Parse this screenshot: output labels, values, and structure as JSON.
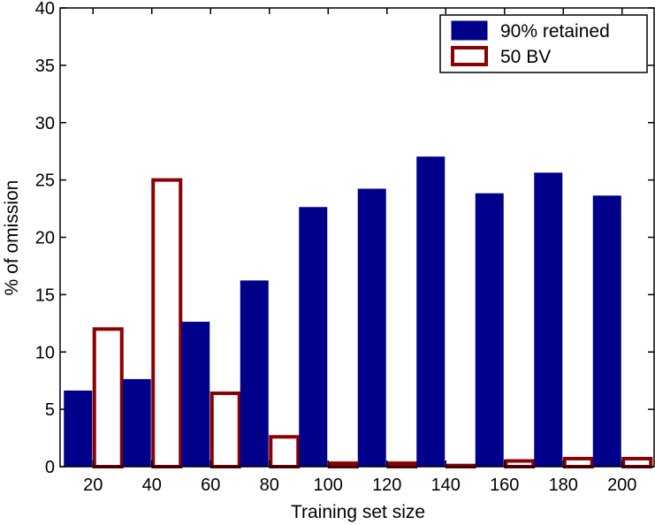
{
  "chart_data": {
    "type": "bar",
    "categories": [
      "20",
      "40",
      "60",
      "80",
      "100",
      "120",
      "140",
      "160",
      "180",
      "200"
    ],
    "series": [
      {
        "name": "90% retained",
        "values": [
          6.6,
          7.6,
          12.6,
          16.2,
          22.6,
          24.2,
          27.0,
          23.8,
          25.6,
          23.6
        ],
        "fill": "#00008b",
        "stroke": "#00008b"
      },
      {
        "name": "50 BV",
        "values": [
          12.0,
          25.0,
          6.4,
          2.6,
          0.3,
          0.3,
          0.1,
          0.5,
          0.7,
          0.7
        ],
        "fill": "#ffffff",
        "stroke": "#8b0000"
      }
    ],
    "title": "",
    "xlabel": "Training set size",
    "ylabel": "% of omission",
    "ylim": [
      0,
      40
    ],
    "yticks": [
      "0",
      "5",
      "10",
      "15",
      "20",
      "25",
      "30",
      "35",
      "40"
    ],
    "grid": false,
    "legend_position": "top-right"
  }
}
